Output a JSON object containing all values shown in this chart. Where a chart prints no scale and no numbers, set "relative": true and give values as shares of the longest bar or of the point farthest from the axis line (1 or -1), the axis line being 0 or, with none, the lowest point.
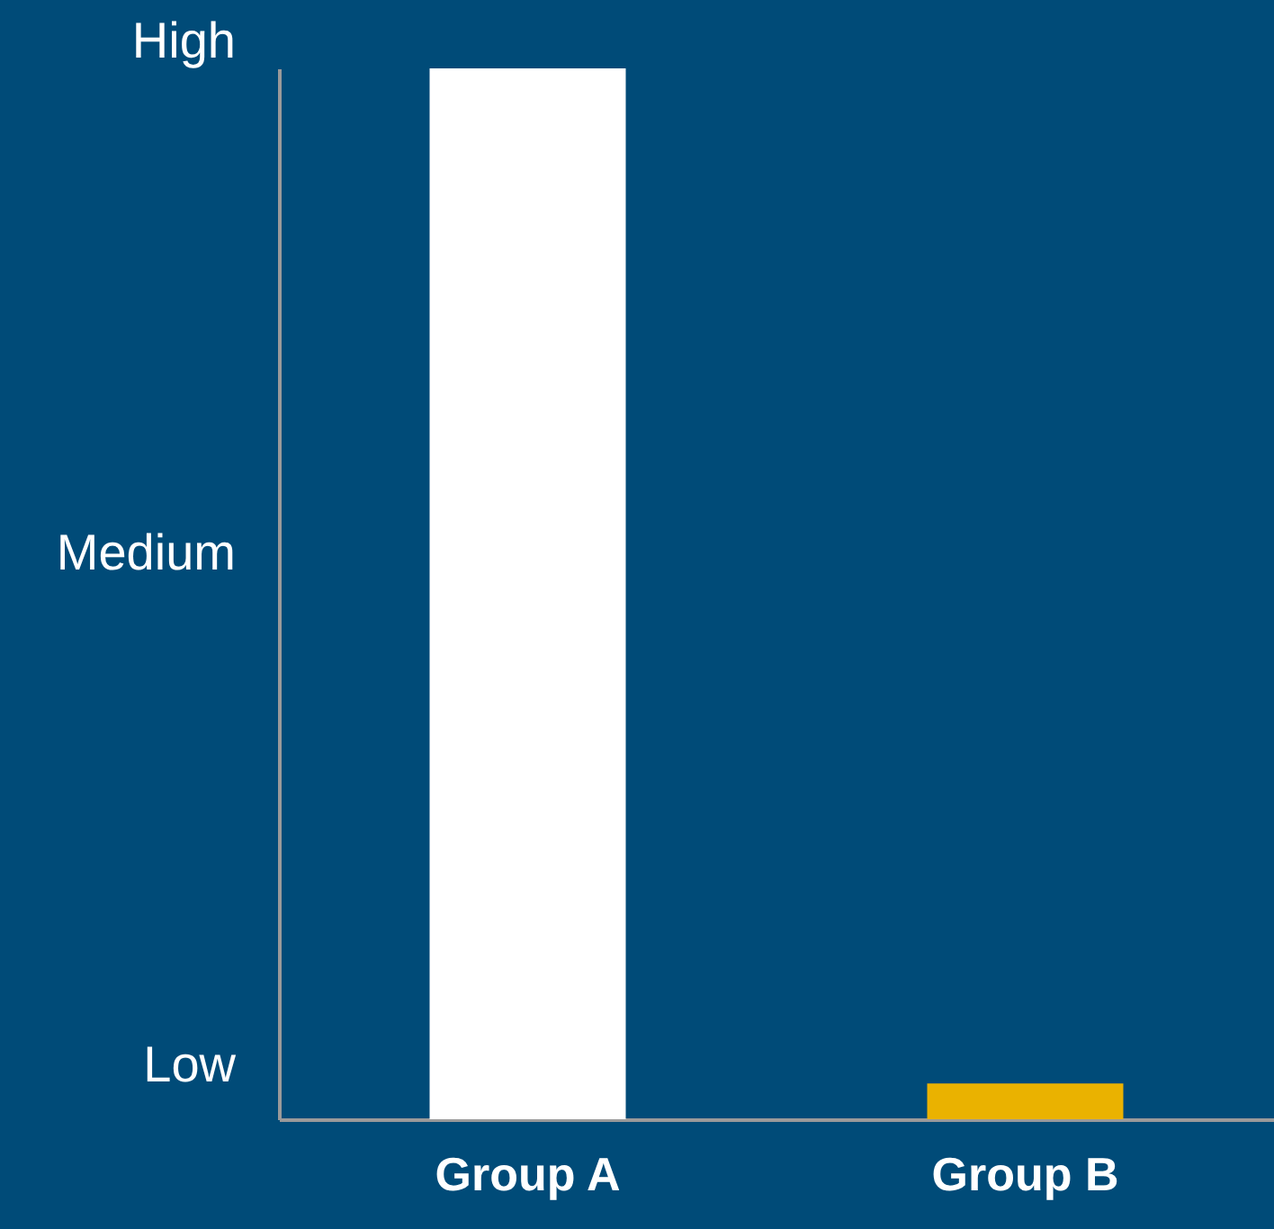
{
  "chart_data": {
    "type": "bar",
    "categories": [
      "Group A",
      "Group B"
    ],
    "colors": [
      "#ffffff",
      "#eab200"
    ],
    "values": [
      1.0,
      0.034
    ],
    "relative": true,
    "annotations": [
      "High",
      "Medium",
      "Low"
    ]
  }
}
